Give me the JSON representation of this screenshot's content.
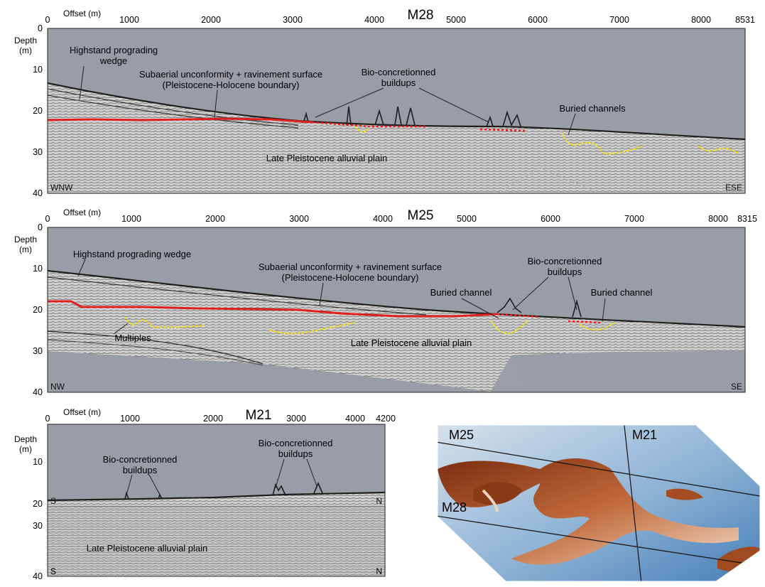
{
  "panels": [
    {
      "id": "m28",
      "title": "M28",
      "offset_label": "Offset (m)",
      "depth_label": [
        "Depth",
        "(m)"
      ],
      "x_ticks": [
        0,
        1000,
        2000,
        3000,
        4000,
        5000,
        6000,
        7000,
        8000
      ],
      "x_max": 8531,
      "y_ticks": [
        0,
        10,
        20,
        30,
        40
      ],
      "left_corner": "WNW",
      "right_corner": "ESE",
      "annotations": {
        "wedge": [
          "Highstand prograding",
          "wedge"
        ],
        "unconformity": [
          "Subaerial unconformity + ravinement surface",
          "(Pleistocene-Holocene boundary)"
        ],
        "buildups": [
          "Bio-concretionned",
          "buildups"
        ],
        "channels": [
          "Buried channels"
        ],
        "plain": [
          "Late Pleistocene alluvial plain"
        ]
      }
    },
    {
      "id": "m25",
      "title": "M25",
      "offset_label": "Offset (m)",
      "depth_label": [
        "Depth",
        "(m)"
      ],
      "x_ticks": [
        0,
        1000,
        2000,
        3000,
        4000,
        5000,
        6000,
        7000,
        8000
      ],
      "x_max": 8315,
      "y_ticks": [
        0,
        10,
        20,
        30,
        40
      ],
      "left_corner": "NW",
      "right_corner": "SE",
      "annotations": {
        "wedge": [
          "Highstand prograding wedge"
        ],
        "unconformity": [
          "Subaerial unconformity + ravinement surface",
          "(Pleistocene-Holocene boundary)"
        ],
        "buildups": [
          "Bio-concretionned",
          "buildups"
        ],
        "channel_a": [
          "Buried channel"
        ],
        "channel_b": [
          "Buried channel"
        ],
        "multiples": [
          "Multiples"
        ],
        "plain": [
          "Late Pleistocene alluvial plain"
        ]
      }
    },
    {
      "id": "m21",
      "title": "M21",
      "offset_label": "Offset (m)",
      "depth_label": [
        "Depth",
        "(m)"
      ],
      "x_ticks": [
        0,
        1000,
        2000,
        3000,
        4000
      ],
      "x_max": 4200,
      "y_ticks": [
        10,
        20,
        30,
        40
      ],
      "left_corner": "S",
      "right_corner": "N",
      "annotations": {
        "buildups_a": [
          "Bio-concretionned",
          "buildups"
        ],
        "buildups_b": [
          "Bio-concretionned",
          "buildups"
        ],
        "plain": [
          "Late Pleistocene alluvial plain"
        ]
      }
    }
  ],
  "map": {
    "labels": [
      "M25",
      "M21",
      "M28"
    ]
  },
  "colors": {
    "water": "#999ea6",
    "sediment_light": "#e6e6e6",
    "unconformity": "#e02020",
    "channel": "#f2e21a",
    "sea_floor": "#202020",
    "map_blue": "#6f9fc8",
    "map_ridge": "#a0451e"
  }
}
